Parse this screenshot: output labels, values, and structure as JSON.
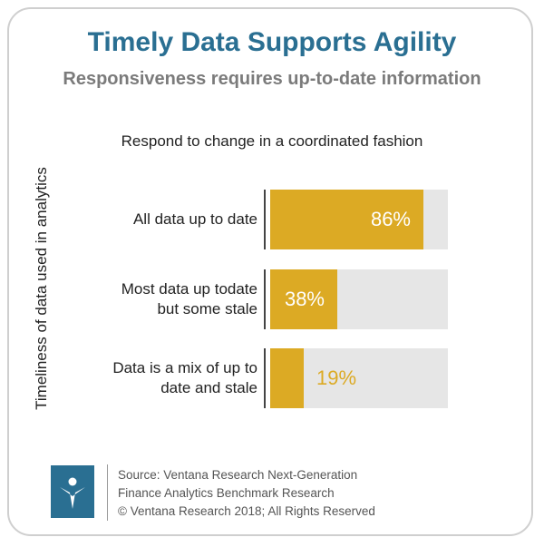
{
  "title": "Timely Data Supports Agility",
  "subtitle": "Responsiveness requires up-to-date information",
  "chart_data": {
    "type": "bar",
    "orientation": "horizontal",
    "title": "Respond to change in a coordinated fashion",
    "ylabel": "Timeliness of data used in analytics",
    "xlabel": "",
    "xlim": [
      0,
      100
    ],
    "categories": [
      [
        "All data up to date"
      ],
      [
        "Most data up todate",
        "but some stale"
      ],
      [
        "Data is a mix of up to",
        "date and stale"
      ]
    ],
    "values": [
      86,
      38,
      19
    ],
    "value_labels": [
      "86%",
      "38%",
      "19%"
    ],
    "bar_color": "#dcaa24",
    "track_color": "#e6e6e6"
  },
  "footer": {
    "lines": [
      "Source: Ventana Research Next-Generation",
      "Finance Analytics Benchmark Research",
      "© Ventana Research 2018; All Rights Reserved"
    ],
    "logo_icon": "ventana-logo-icon",
    "logo_color": "#2a6f92"
  }
}
